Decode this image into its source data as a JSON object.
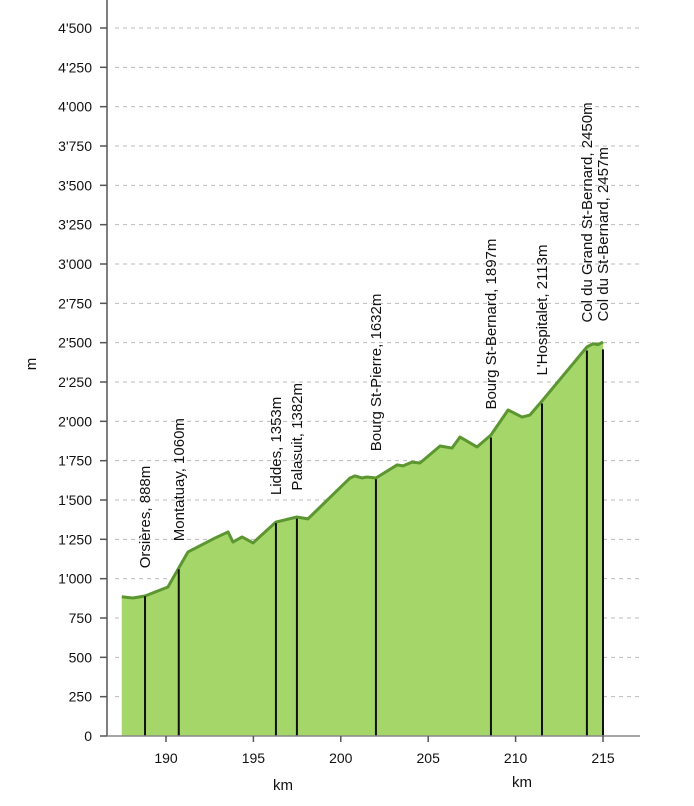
{
  "chart_data": {
    "type": "area",
    "title": "",
    "xlabel": "km",
    "xlabel_repeat": "km",
    "ylabel": "m",
    "xlim": [
      187.3,
      216.5
    ],
    "ylim": [
      0,
      4500
    ],
    "grid": true,
    "y_ticks": [
      {
        "v": 0,
        "label": "0"
      },
      {
        "v": 250,
        "label": "250"
      },
      {
        "v": 500,
        "label": "500"
      },
      {
        "v": 750,
        "label": "750"
      },
      {
        "v": 1000,
        "label": "1'000"
      },
      {
        "v": 1250,
        "label": "1'250"
      },
      {
        "v": 1500,
        "label": "1'500"
      },
      {
        "v": 1750,
        "label": "1'750"
      },
      {
        "v": 2000,
        "label": "2'000"
      },
      {
        "v": 2250,
        "label": "2'250"
      },
      {
        "v": 2500,
        "label": "2'500"
      },
      {
        "v": 2750,
        "label": "2'750"
      },
      {
        "v": 3000,
        "label": "3'000"
      },
      {
        "v": 3250,
        "label": "3'250"
      },
      {
        "v": 3500,
        "label": "3'500"
      },
      {
        "v": 3750,
        "label": "3'750"
      },
      {
        "v": 4000,
        "label": "4'000"
      },
      {
        "v": 4250,
        "label": "4'250"
      },
      {
        "v": 4500,
        "label": "4'500"
      }
    ],
    "x_ticks": [
      {
        "v": 190,
        "label": "190"
      },
      {
        "v": 195,
        "label": "195"
      },
      {
        "v": 200,
        "label": "200"
      },
      {
        "v": 205,
        "label": "205"
      },
      {
        "v": 210,
        "label": "210"
      },
      {
        "v": 215,
        "label": "215"
      }
    ],
    "profile": {
      "km": [
        187.47,
        188.11,
        188.8,
        190.11,
        190.73,
        191.26,
        192.8,
        193.55,
        193.83,
        194.35,
        194.98,
        196.29,
        197.49,
        198.12,
        200.53,
        200.81,
        201.21,
        201.5,
        202.01,
        203.22,
        203.56,
        204.07,
        204.53,
        205.68,
        206.36,
        206.82,
        207.79,
        208.59,
        209.57,
        210.37,
        210.82,
        211.51,
        214.08,
        214.43,
        214.71,
        215.0
      ],
      "elev": [
        885,
        877,
        890,
        947,
        1068,
        1170,
        1258,
        1297,
        1233,
        1265,
        1227,
        1360,
        1392,
        1380,
        1640,
        1653,
        1640,
        1646,
        1640,
        1723,
        1717,
        1741,
        1735,
        1843,
        1830,
        1900,
        1837,
        1913,
        2072,
        2027,
        2040,
        2129,
        2473,
        2493,
        2487,
        2504
      ]
    },
    "annotations": [
      {
        "km": 188.8,
        "elev": 888,
        "label": "Orsières, 888m"
      },
      {
        "km": 190.73,
        "elev": 1060,
        "label": "Montatuay, 1060m"
      },
      {
        "km": 196.29,
        "elev": 1353,
        "label": "Liddes, 1353m"
      },
      {
        "km": 197.49,
        "elev": 1382,
        "label": "Palasuit, 1382m"
      },
      {
        "km": 202.01,
        "elev": 1632,
        "label": "Bourg St-Pierre, 1632m"
      },
      {
        "km": 208.59,
        "elev": 1897,
        "label": "Bourg St-Bernard, 1897m"
      },
      {
        "km": 211.51,
        "elev": 2113,
        "label": "L'Hospitalet, 2113m"
      },
      {
        "km": 214.08,
        "elev": 2450,
        "label": "Col du Grand St-Bernard, 2450m"
      },
      {
        "km": 215.0,
        "elev": 2457,
        "label": "Col du St-Bernard, 2457m"
      }
    ],
    "colors": {
      "fill": "#a4d66a",
      "line": "#5c9630",
      "grid": "#bbbbbb",
      "marker": "#111111"
    }
  }
}
